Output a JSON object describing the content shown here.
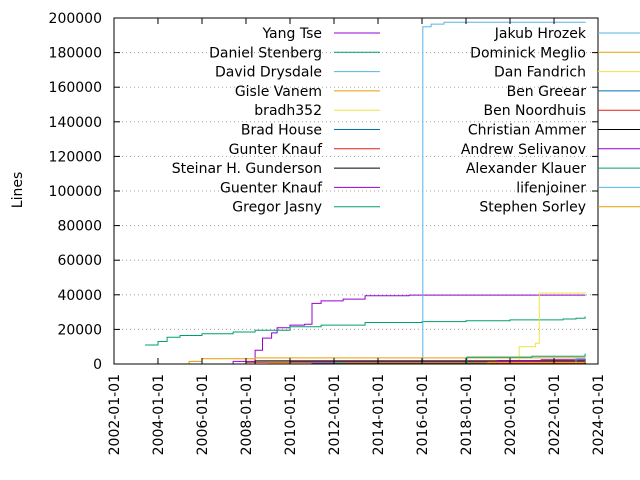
{
  "chart_data": {
    "type": "line",
    "ylabel": "Lines",
    "xlabel": "",
    "title": "",
    "ylim": [
      0,
      200000
    ],
    "xlim": [
      "2002-01-01",
      "2024-01-01"
    ],
    "y_ticks": [
      0,
      20000,
      40000,
      60000,
      80000,
      100000,
      120000,
      140000,
      160000,
      180000,
      200000
    ],
    "x_ticks": [
      "2002-01-01",
      "2004-01-01",
      "2006-01-01",
      "2008-01-01",
      "2010-01-01",
      "2012-01-01",
      "2014-01-01",
      "2016-01-01",
      "2018-01-01",
      "2020-01-01",
      "2022-01-01",
      "2024-01-01"
    ],
    "grid": "horizontal-dotted",
    "legend_position": "top",
    "step": true,
    "series": [
      {
        "name": "Yang Tse",
        "color": "#9400d3",
        "points": [
          [
            "2004-08-01",
            0
          ],
          [
            "2007-06-01",
            1500
          ],
          [
            "2008-06-01",
            8000
          ],
          [
            "2008-10-01",
            15000
          ],
          [
            "2009-03-01",
            18000
          ],
          [
            "2009-06-01",
            21000
          ],
          [
            "2010-01-01",
            22500
          ],
          [
            "2010-09-01",
            23000
          ],
          [
            "2011-01-01",
            35000
          ],
          [
            "2011-06-01",
            36500
          ],
          [
            "2012-06-01",
            37500
          ],
          [
            "2013-06-01",
            39500
          ],
          [
            "2015-06-01",
            39800
          ],
          [
            "2023-06-01",
            40000
          ]
        ]
      },
      {
        "name": "Daniel Stenberg",
        "color": "#009e73",
        "points": [
          [
            "2003-06-01",
            11000
          ],
          [
            "2004-01-01",
            13000
          ],
          [
            "2004-06-01",
            15500
          ],
          [
            "2005-01-01",
            16500
          ],
          [
            "2006-01-01",
            17500
          ],
          [
            "2007-06-01",
            18500
          ],
          [
            "2008-06-01",
            19500
          ],
          [
            "2010-01-01",
            21500
          ],
          [
            "2011-06-01",
            22500
          ],
          [
            "2013-06-01",
            24000
          ],
          [
            "2016-01-01",
            24500
          ],
          [
            "2018-01-01",
            25000
          ],
          [
            "2020-01-01",
            25500
          ],
          [
            "2022-06-01",
            26000
          ],
          [
            "2023-01-01",
            26500
          ],
          [
            "2023-06-01",
            27500
          ]
        ]
      },
      {
        "name": "David Drysdale",
        "color": "#56b4e9",
        "points": [
          [
            "2016-01-01",
            0
          ],
          [
            "2016-01-15",
            195000
          ],
          [
            "2016-06-01",
            196500
          ],
          [
            "2017-01-01",
            197500
          ],
          [
            "2023-06-01",
            197800
          ]
        ]
      },
      {
        "name": "Gisle Vanem",
        "color": "#e69f00",
        "points": [
          [
            "2005-01-01",
            0
          ],
          [
            "2005-06-01",
            1500
          ],
          [
            "2006-01-01",
            3000
          ],
          [
            "2008-06-01",
            3500
          ],
          [
            "2023-06-01",
            3600
          ]
        ]
      },
      {
        "name": "bradh352",
        "color": "#f0e442",
        "points": [
          [
            "2018-01-01",
            0
          ],
          [
            "2020-03-01",
            400
          ],
          [
            "2020-06-01",
            10000
          ],
          [
            "2021-03-01",
            12000
          ],
          [
            "2021-05-01",
            41000
          ],
          [
            "2023-06-01",
            41500
          ]
        ]
      },
      {
        "name": "Brad House",
        "color": "#0072b2",
        "points": [
          [
            "2018-01-01",
            0
          ],
          [
            "2023-06-01",
            1000
          ]
        ]
      },
      {
        "name": "Gunter Knauf",
        "color": "#e51e10",
        "points": [
          [
            "2005-06-01",
            0
          ],
          [
            "2008-01-01",
            1000
          ],
          [
            "2010-01-01",
            1500
          ],
          [
            "2023-06-01",
            1600
          ]
        ]
      },
      {
        "name": "Steinar H. Gunderson",
        "color": "#000000",
        "points": [
          [
            "2007-01-01",
            0
          ],
          [
            "2008-06-01",
            1800
          ],
          [
            "2023-06-01",
            2000
          ]
        ]
      },
      {
        "name": "Guenter Knauf",
        "color": "#9400d3",
        "points": [
          [
            "2008-01-01",
            0
          ],
          [
            "2010-01-01",
            1000
          ],
          [
            "2023-06-01",
            1200
          ]
        ]
      },
      {
        "name": "Gregor Jasny",
        "color": "#009e73",
        "points": [
          [
            "2010-01-01",
            0
          ],
          [
            "2012-01-01",
            800
          ],
          [
            "2023-06-01",
            900
          ]
        ]
      },
      {
        "name": "Jakub Hrozek",
        "color": "#56b4e9",
        "points": [
          [
            "2012-01-01",
            0
          ],
          [
            "2014-01-01",
            600
          ],
          [
            "2023-06-01",
            700
          ]
        ]
      },
      {
        "name": "Dominick Meglio",
        "color": "#e69f00",
        "points": [
          [
            "2009-01-01",
            0
          ],
          [
            "2010-01-01",
            500
          ],
          [
            "2023-06-01",
            600
          ]
        ]
      },
      {
        "name": "Dan Fandrich",
        "color": "#f0e442",
        "points": [
          [
            "2007-01-01",
            0
          ],
          [
            "2009-01-01",
            400
          ],
          [
            "2023-06-01",
            500
          ]
        ]
      },
      {
        "name": "Ben Greear",
        "color": "#0072b2",
        "points": [
          [
            "2010-01-01",
            0
          ],
          [
            "2011-01-01",
            300
          ],
          [
            "2023-06-01",
            400
          ]
        ]
      },
      {
        "name": "Ben Noordhuis",
        "color": "#e51e10",
        "points": [
          [
            "2011-06-01",
            0
          ],
          [
            "2012-06-01",
            300
          ],
          [
            "2023-06-01",
            350
          ]
        ]
      },
      {
        "name": "Christian Ammer",
        "color": "#000000",
        "points": [
          [
            "2018-01-01",
            0
          ],
          [
            "2023-06-01",
            2000
          ]
        ]
      },
      {
        "name": "Andrew Selivanov",
        "color": "#9400d3",
        "points": [
          [
            "2018-01-01",
            0
          ],
          [
            "2019-06-01",
            2000
          ],
          [
            "2021-06-01",
            2500
          ],
          [
            "2023-06-01",
            3000
          ]
        ]
      },
      {
        "name": "Alexander Klauer",
        "color": "#009e73",
        "points": [
          [
            "2018-01-01",
            0
          ],
          [
            "2018-01-15",
            4000
          ],
          [
            "2021-01-01",
            4500
          ],
          [
            "2023-06-01",
            6000
          ]
        ]
      },
      {
        "name": "lifenjoiner",
        "color": "#56b4e9",
        "points": [
          [
            "2022-01-01",
            0
          ],
          [
            "2023-01-01",
            3000
          ],
          [
            "2023-06-01",
            3500
          ]
        ]
      },
      {
        "name": "Stephen Sorley",
        "color": "#e69f00",
        "points": [
          [
            "2018-06-01",
            0
          ],
          [
            "2019-01-01",
            1000
          ],
          [
            "2023-06-01",
            1500
          ]
        ]
      }
    ]
  }
}
